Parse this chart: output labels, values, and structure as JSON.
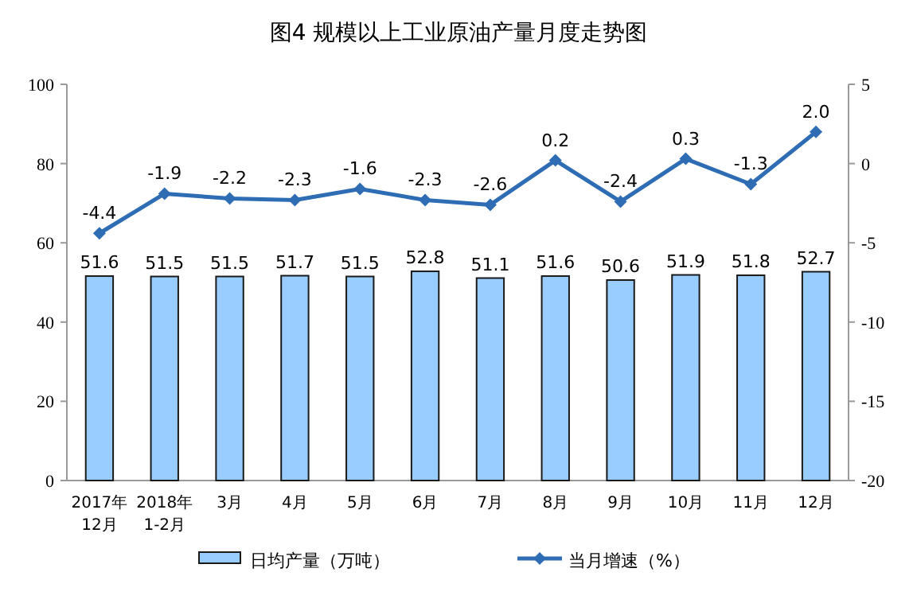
{
  "chart_data": {
    "type": "bar",
    "title": "图4  规模以上工业原油产量月度走势图",
    "categories": [
      "2017年\n12月",
      "2018年\n1-2月",
      "3月",
      "4月",
      "5月",
      "6月",
      "7月",
      "8月",
      "9月",
      "10月",
      "11月",
      "12月"
    ],
    "series": [
      {
        "name": "日均产量（万吨）",
        "color": "#99ccff",
        "values": [
          51.6,
          51.5,
          51.5,
          51.7,
          51.5,
          52.8,
          51.1,
          51.6,
          50.6,
          51.9,
          51.8,
          52.7
        ]
      },
      {
        "name": "当月增速（%）",
        "type": "line",
        "axis": "y2",
        "color": "#2e6db4",
        "values": [
          -4.4,
          -1.9,
          -2.2,
          -2.3,
          -1.6,
          -2.3,
          -2.6,
          0.2,
          -2.4,
          0.3,
          -1.3,
          2.0
        ],
        "value_labels": [
          "-4.4",
          "-1.9",
          "-2.2",
          "-2.3",
          "-1.6",
          "-2.3",
          "-2.6",
          "0.2",
          "-2.4",
          "0.3",
          "-1.3",
          "2.0"
        ]
      }
    ],
    "ylim": [
      0,
      100
    ],
    "yticks": [
      0,
      20,
      40,
      60,
      80,
      100
    ],
    "y2lim": [
      -20,
      5
    ],
    "y2ticks": [
      -20,
      -15,
      -10,
      -5,
      0,
      5
    ],
    "data_labels": true,
    "marker": "diamond",
    "legend": "bottom",
    "grid": false
  }
}
